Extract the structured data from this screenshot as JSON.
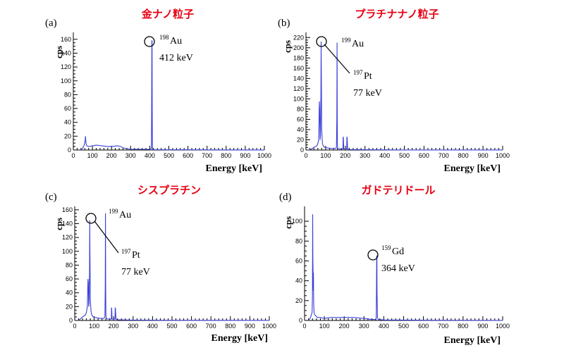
{
  "chart_data": [
    {
      "type": "line",
      "panel_label": "(a)",
      "title": "金ナノ粒子",
      "xlabel": "Energy [keV]",
      "ylabel": "cps",
      "xlim": [
        0,
        1000
      ],
      "ylim": [
        0,
        170
      ],
      "xticks": [
        0,
        100,
        200,
        300,
        400,
        500,
        600,
        700,
        800,
        900,
        1000
      ],
      "yticks": [
        0,
        20,
        40,
        60,
        80,
        100,
        120,
        140,
        160
      ],
      "series": [
        {
          "x": [
            40,
            50,
            58,
            62,
            64,
            66,
            70,
            80,
            100,
            120,
            150,
            180,
            200,
            230,
            250,
            260,
            280,
            300,
            350,
            380,
            400,
            409,
            410,
            411,
            412,
            413,
            414,
            416,
            420,
            500,
            700,
            1000
          ],
          "y": [
            0,
            3,
            8,
            14,
            20,
            10,
            6,
            5,
            6,
            7,
            6,
            5,
            5,
            6,
            5,
            3,
            2,
            1,
            1,
            1,
            1,
            2,
            60,
            158,
            158,
            60,
            3,
            1,
            0.5,
            0.3,
            0.2,
            0.1
          ]
        }
      ],
      "annotations": [
        {
          "sup": "198",
          "text": "Au",
          "energy": "412 keV",
          "x": 412,
          "y": 158
        }
      ]
    },
    {
      "type": "line",
      "panel_label": "(b)",
      "title": "プラチナナノ粒子",
      "xlabel": "Energy [keV]",
      "ylabel": "cps",
      "xlim": [
        0,
        1000
      ],
      "ylim": [
        0,
        230
      ],
      "xticks": [
        0,
        100,
        200,
        300,
        400,
        500,
        600,
        700,
        800,
        900,
        1000
      ],
      "yticks": [
        0,
        20,
        40,
        60,
        80,
        100,
        120,
        140,
        160,
        180,
        200,
        220
      ],
      "series": [
        {
          "x": [
            20,
            40,
            55,
            60,
            65,
            68,
            70,
            72,
            74,
            76,
            77,
            78,
            80,
            84,
            88,
            95,
            110,
            130,
            150,
            155,
            157,
            158,
            159,
            160,
            162,
            170,
            180,
            188,
            189,
            190,
            192,
            200,
            207,
            208,
            209,
            212,
            220,
            300,
            500,
            1000
          ],
          "y": [
            0,
            5,
            8,
            12,
            20,
            95,
            80,
            20,
            30,
            110,
            212,
            150,
            40,
            12,
            8,
            5,
            4,
            3,
            3,
            5,
            60,
            210,
            60,
            8,
            3,
            2,
            2,
            2,
            25,
            25,
            2,
            2,
            2,
            25,
            25,
            2,
            1,
            0.5,
            0.2,
            0.1
          ]
        }
      ],
      "annotations": [
        {
          "sup": "197",
          "text": "Pt",
          "energy": "77 keV",
          "x": 77,
          "y": 212
        },
        {
          "sup": "199",
          "text": "Au",
          "energy": "",
          "x": 158,
          "y": 210
        }
      ]
    },
    {
      "type": "line",
      "panel_label": "(c)",
      "title": "シスプラチン",
      "xlabel": "Energy [keV]",
      "ylabel": "cps",
      "xlim": [
        0,
        1000
      ],
      "ylim": [
        0,
        165
      ],
      "xticks": [
        0,
        100,
        200,
        300,
        400,
        500,
        600,
        700,
        800,
        900,
        1000
      ],
      "yticks": [
        0,
        20,
        40,
        60,
        80,
        100,
        120,
        140,
        160
      ],
      "series": [
        {
          "x": [
            20,
            40,
            55,
            60,
            65,
            68,
            70,
            72,
            74,
            76,
            77,
            78,
            80,
            84,
            88,
            95,
            110,
            130,
            150,
            155,
            157,
            158,
            159,
            160,
            162,
            170,
            180,
            188,
            189,
            190,
            192,
            200,
            207,
            208,
            209,
            212,
            220,
            300,
            500,
            1000
          ],
          "y": [
            0,
            5,
            8,
            12,
            20,
            60,
            55,
            20,
            25,
            70,
            145,
            110,
            30,
            12,
            8,
            5,
            4,
            3,
            3,
            5,
            50,
            155,
            50,
            8,
            3,
            2,
            2,
            2,
            18,
            18,
            2,
            2,
            2,
            18,
            18,
            2,
            1,
            0.5,
            0.2,
            0.1
          ]
        }
      ],
      "annotations": [
        {
          "sup": "197",
          "text": "Pt",
          "energy": "77 keV",
          "x": 77,
          "y": 145
        },
        {
          "sup": "199",
          "text": "Au",
          "energy": "",
          "x": 158,
          "y": 155
        }
      ]
    },
    {
      "type": "line",
      "panel_label": "(d)",
      "title": "ガドテリドール",
      "xlabel": "Energy [keV]",
      "ylabel": "cps",
      "xlim": [
        0,
        1000
      ],
      "ylim": [
        0,
        115
      ],
      "xticks": [
        0,
        100,
        200,
        300,
        400,
        500,
        600,
        700,
        800,
        900,
        1000
      ],
      "yticks": [
        0,
        20,
        40,
        60,
        80,
        100
      ],
      "series": [
        {
          "x": [
            20,
            30,
            38,
            40,
            41,
            42,
            43,
            44,
            45,
            46,
            47,
            48,
            50,
            55,
            60,
            65,
            70,
            80,
            100,
            130,
            160,
            200,
            250,
            300,
            340,
            355,
            360,
            362,
            363,
            364,
            365,
            366,
            368,
            372,
            400,
            600,
            1000
          ],
          "y": [
            0,
            3,
            8,
            25,
            107,
            60,
            48,
            30,
            48,
            20,
            12,
            8,
            6,
            5,
            4,
            3,
            3,
            3,
            2,
            3,
            3,
            3,
            3,
            2,
            1,
            1,
            1,
            3,
            30,
            65,
            65,
            30,
            3,
            1,
            0.5,
            0.2,
            0.1
          ]
        }
      ],
      "annotations": [
        {
          "sup": "159",
          "text": "Gd",
          "energy": "364 keV",
          "x": 364,
          "y": 65
        }
      ]
    }
  ],
  "colors": {
    "series": "#3a3fd9",
    "title": "#e60012",
    "axis": "#000000"
  }
}
